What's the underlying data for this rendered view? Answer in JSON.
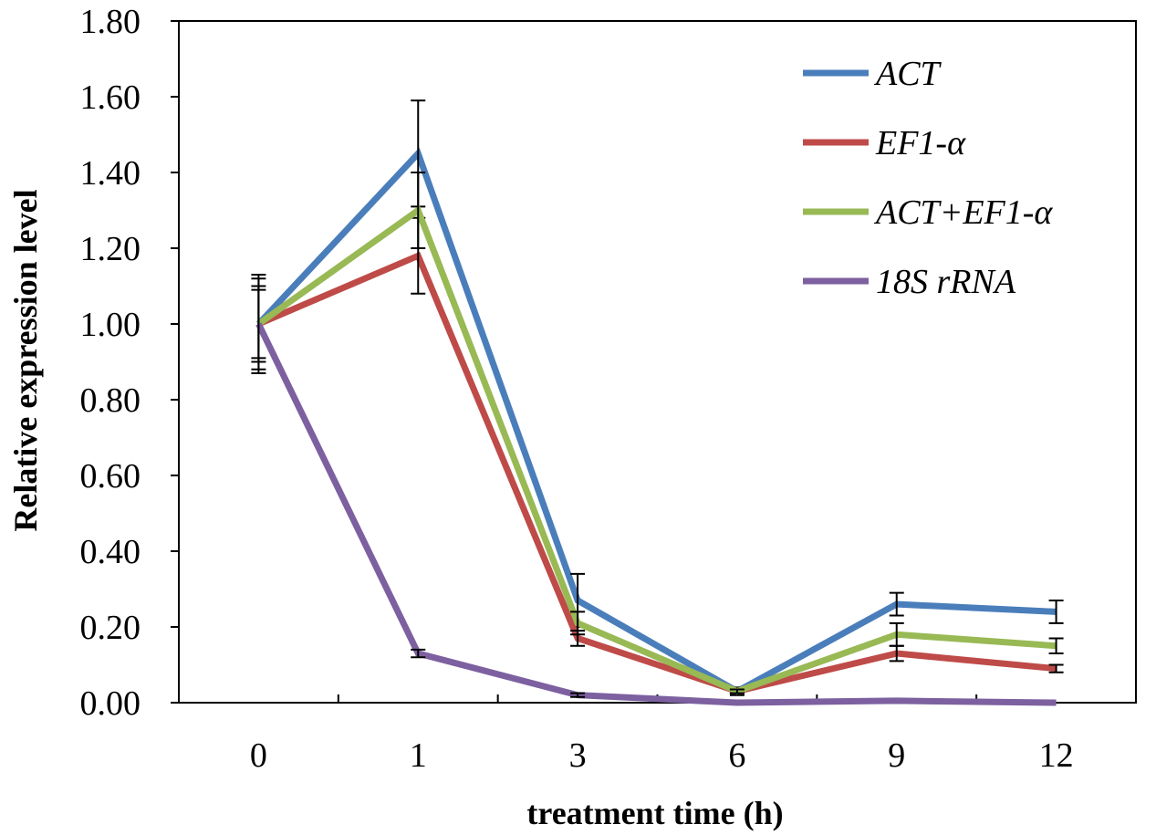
{
  "chart_data": {
    "type": "line",
    "title": "",
    "xlabel": "treatment time (h)",
    "ylabel": "Relative expression level",
    "categories": [
      "0",
      "1",
      "3",
      "6",
      "9",
      "12"
    ],
    "ylim": [
      0,
      1.8
    ],
    "yticks": [
      "0.00",
      "0.20",
      "0.40",
      "0.60",
      "0.80",
      "1.00",
      "1.20",
      "1.40",
      "1.60",
      "1.80"
    ],
    "legend_position": "top-right",
    "series": [
      {
        "name": "ACT",
        "color": "#4a7ebb",
        "values": [
          1.0,
          1.45,
          0.27,
          0.03,
          0.26,
          0.24
        ],
        "errors": [
          0.13,
          0.14,
          0.07,
          0.01,
          0.03,
          0.03
        ]
      },
      {
        "name": "EF1-α",
        "color": "#be4b48",
        "values": [
          1.0,
          1.18,
          0.17,
          0.03,
          0.13,
          0.09
        ],
        "errors": [
          0.09,
          0.1,
          0.02,
          0.005,
          0.02,
          0.01
        ]
      },
      {
        "name": "ACT+EF1-α",
        "color": "#98b954",
        "values": [
          1.0,
          1.3,
          0.21,
          0.03,
          0.18,
          0.15
        ],
        "errors": [
          0.1,
          0.1,
          0.03,
          0.005,
          0.03,
          0.02
        ]
      },
      {
        "name": "18S rRNA",
        "color": "#7d60a0",
        "values": [
          1.0,
          0.13,
          0.02,
          0.0,
          0.005,
          0.0
        ],
        "errors": [
          0.12,
          0.01,
          0.005,
          0.0,
          0.0,
          0.0
        ]
      }
    ]
  }
}
